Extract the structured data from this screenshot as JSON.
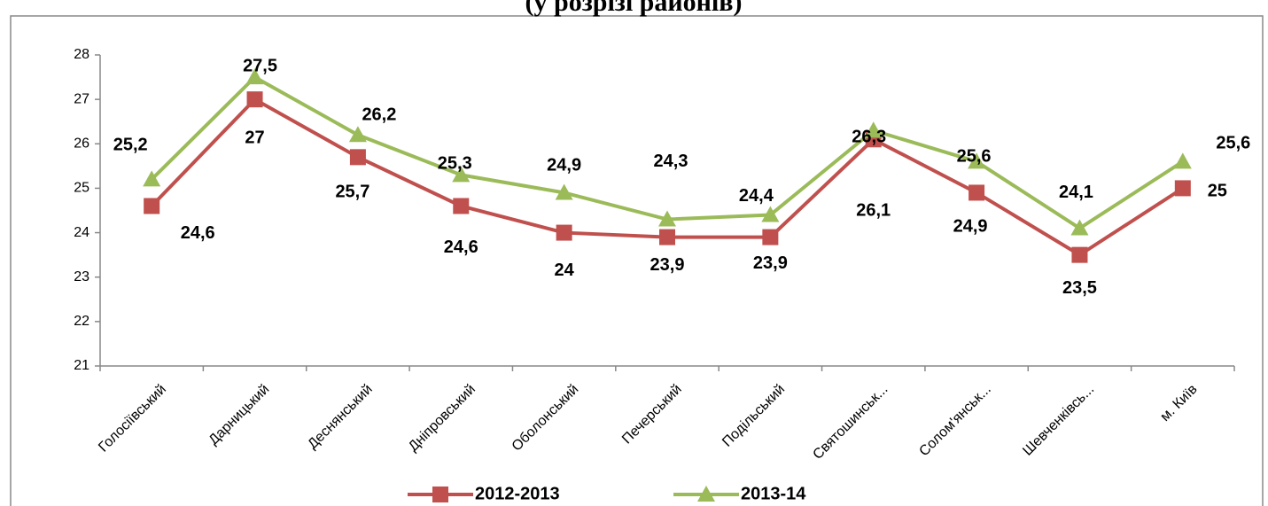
{
  "chart_data": {
    "type": "line",
    "title": "(у розрізі районів)",
    "categories": [
      "Голосіївський",
      "Дарницький",
      "Деснянський",
      "Дніпровський",
      "Оболонський",
      "Печерський",
      "Подільський",
      "Святошинськ...",
      "Солом'янськ...",
      "Шевченківсь...",
      "м. Київ"
    ],
    "series": [
      {
        "name": "2012-2013",
        "color": "#c0504d",
        "marker": "square",
        "values": [
          24.6,
          27,
          25.7,
          24.6,
          24,
          23.9,
          23.9,
          26.1,
          24.9,
          23.5,
          25
        ],
        "value_labels": [
          "24,6",
          "27",
          "25,7",
          "24,6",
          "24",
          "23,9",
          "23,9",
          "26,1",
          "24,9",
          "23,5",
          "25"
        ]
      },
      {
        "name": "2013-14",
        "color": "#9bbb59",
        "marker": "triangle",
        "values": [
          25.2,
          27.5,
          26.2,
          25.3,
          24.9,
          24.3,
          24.4,
          26.3,
          25.6,
          24.1,
          25.6
        ],
        "value_labels": [
          "25,2",
          "27,5",
          "26,2",
          "25,3",
          "24,9",
          "24,3",
          "24,4",
          "26,3",
          "25,6",
          "24,1",
          "25,6"
        ]
      }
    ],
    "ylim": [
      21,
      28
    ],
    "yticks": [
      21,
      22,
      23,
      24,
      25,
      26,
      27,
      28
    ],
    "grid": false,
    "legend": "bottom"
  }
}
